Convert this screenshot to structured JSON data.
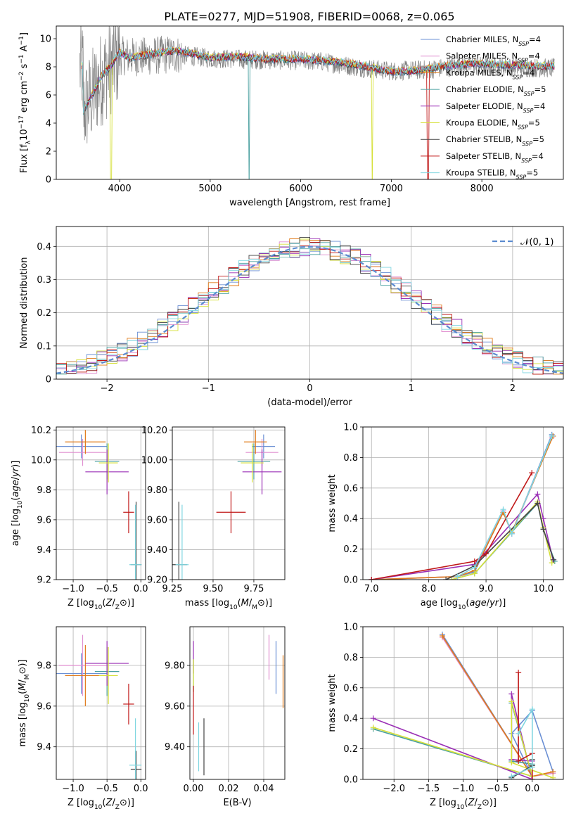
{
  "figure": {
    "title": "PLATE=0277, MJD=51908, FIBERID=0068, z=0.065"
  },
  "series_styles": [
    {
      "name": "Chabrier MILES",
      "nssp": "4",
      "color": "#6a8fd4"
    },
    {
      "name": "Salpeter MILES",
      "nssp": "4",
      "color": "#e08fd0"
    },
    {
      "name": "Kroupa MILES",
      "nssp": "4",
      "color": "#e07b1a"
    },
    {
      "name": "Chabrier ELODIE",
      "nssp": "5",
      "color": "#4aa0a0"
    },
    {
      "name": "Salpeter ELODIE",
      "nssp": "4",
      "color": "#9a2fb5"
    },
    {
      "name": "Kroupa ELODIE",
      "nssp": "5",
      "color": "#d6e03a"
    },
    {
      "name": "Chabrier STELIB",
      "nssp": "5",
      "color": "#444444"
    },
    {
      "name": "Salpeter STELIB",
      "nssp": "4",
      "color": "#c01818"
    },
    {
      "name": "Kroupa STELIB",
      "nssp": "5",
      "color": "#7fd6e0"
    }
  ],
  "chart_data": [
    {
      "id": "spectrum",
      "type": "line",
      "xlabel": "wavelength [Angstrom, rest frame]",
      "ylabel_main": "Flux [f",
      "ylabel_rest": "10",
      "ylabel_exp": "−17",
      "ylabel_tail": " erg cm",
      "xlim": [
        3300,
        8900
      ],
      "ylim": [
        0,
        10.9
      ],
      "xticks": [
        4000,
        5000,
        6000,
        7000,
        8000
      ],
      "yticks": [
        0,
        2,
        4,
        6,
        8,
        10
      ],
      "observed_envelope": [
        [
          3600,
          4.8
        ],
        [
          3800,
          7.2
        ],
        [
          4000,
          8.8
        ],
        [
          4200,
          8.7
        ],
        [
          4600,
          8.9
        ],
        [
          5000,
          8.6
        ],
        [
          5600,
          8.5
        ],
        [
          6200,
          8.4
        ],
        [
          6600,
          8.0
        ],
        [
          7000,
          7.7
        ],
        [
          7400,
          7.8
        ],
        [
          7800,
          8.1
        ],
        [
          8200,
          8.0
        ],
        [
          8800,
          7.9
        ]
      ],
      "model_envelope": [
        [
          3600,
          4.8
        ],
        [
          3700,
          6.0
        ],
        [
          3800,
          7.3
        ],
        [
          3900,
          8.0
        ],
        [
          4000,
          9.0
        ],
        [
          4100,
          8.6
        ],
        [
          4300,
          8.8
        ],
        [
          4600,
          9.1
        ],
        [
          4800,
          8.9
        ],
        [
          5000,
          8.6
        ],
        [
          5300,
          8.7
        ],
        [
          5600,
          8.5
        ],
        [
          6000,
          8.5
        ],
        [
          6400,
          8.3
        ],
        [
          6700,
          8.0
        ],
        [
          7000,
          7.6
        ],
        [
          7300,
          7.7
        ],
        [
          7600,
          8.0
        ],
        [
          7900,
          8.2
        ],
        [
          8200,
          8.1
        ],
        [
          8800,
          8.0
        ]
      ]
    },
    {
      "id": "residuals",
      "type": "line",
      "xlabel": "(data-model)/error",
      "ylabel": "Normed distribution",
      "xlim": [
        -2.5,
        2.5
      ],
      "ylim": [
        0,
        0.46
      ],
      "xticks": [
        -2,
        -1,
        0,
        1,
        2
      ],
      "yticks": [
        0.0,
        0.1,
        0.2,
        0.3,
        0.4
      ],
      "legend": "𝒩(0, 1)",
      "gaussian": {
        "mu": 0,
        "sigma": 1
      }
    },
    {
      "id": "age-Z",
      "type": "scatter",
      "xlabel": "Z [log",
      "ylabel": "age  [log",
      "xlim": [
        -1.25,
        0.07
      ],
      "ylim": [
        9.2,
        10.22
      ],
      "xticks": [
        -1.0,
        -0.5,
        0.0
      ],
      "yticks": [
        9.2,
        9.4,
        9.6,
        9.8,
        10.0,
        10.2
      ],
      "points": [
        {
          "s": 0,
          "x": -0.88,
          "y": 10.09,
          "ex": 0.38,
          "ey": 0.08
        },
        {
          "s": 1,
          "x": -0.86,
          "y": 10.05,
          "ex": 0.35,
          "ey": 0.09
        },
        {
          "s": 2,
          "x": -0.82,
          "y": 10.12,
          "ex": 0.3,
          "ey": 0.08
        },
        {
          "s": 3,
          "x": -0.5,
          "y": 9.99,
          "ex": 0.18,
          "ey": 0.12
        },
        {
          "s": 4,
          "x": -0.5,
          "y": 9.92,
          "ex": 0.32,
          "ey": 0.15
        },
        {
          "s": 5,
          "x": -0.48,
          "y": 9.98,
          "ex": 0.14,
          "ey": 0.13
        },
        {
          "s": 6,
          "x": -0.07,
          "y": 9.3,
          "ex": 0.08,
          "ey": 0.42
        },
        {
          "s": 7,
          "x": -0.18,
          "y": 9.65,
          "ex": 0.08,
          "ey": 0.14
        },
        {
          "s": 8,
          "x": -0.08,
          "y": 9.3,
          "ex": 0.09,
          "ey": 0.4
        }
      ]
    },
    {
      "id": "age-mass",
      "type": "scatter",
      "xlabel": "mass [log",
      "ylabel": "",
      "xlim": [
        9.25,
        9.94
      ],
      "ylim": [
        9.2,
        10.22
      ],
      "xticks": [
        9.25,
        9.5,
        9.75
      ],
      "yticks": [
        9.2,
        9.4,
        9.6,
        9.8,
        10.0,
        10.2
      ],
      "points": [
        {
          "s": 0,
          "x": 9.81,
          "y": 10.09,
          "ex": 0.07,
          "ey": 0.08
        },
        {
          "s": 1,
          "x": 9.8,
          "y": 10.05,
          "ex": 0.1,
          "ey": 0.09
        },
        {
          "s": 2,
          "x": 9.76,
          "y": 10.12,
          "ex": 0.07,
          "ey": 0.08
        },
        {
          "s": 3,
          "x": 9.75,
          "y": 9.99,
          "ex": 0.1,
          "ey": 0.12
        },
        {
          "s": 4,
          "x": 9.8,
          "y": 9.92,
          "ex": 0.12,
          "ey": 0.15
        },
        {
          "s": 5,
          "x": 9.74,
          "y": 9.98,
          "ex": 0.07,
          "ey": 0.13
        },
        {
          "s": 6,
          "x": 9.29,
          "y": 9.3,
          "ex": 0.05,
          "ey": 0.42
        },
        {
          "s": 7,
          "x": 9.61,
          "y": 9.65,
          "ex": 0.09,
          "ey": 0.14
        },
        {
          "s": 8,
          "x": 9.31,
          "y": 9.3,
          "ex": 0.04,
          "ey": 0.4
        }
      ]
    },
    {
      "id": "weight-age",
      "type": "line",
      "xlabel": "age  [log",
      "ylabel": "mass weight",
      "xlim": [
        6.85,
        10.35
      ],
      "ylim": [
        0,
        1.0
      ],
      "xticks": [
        7,
        8,
        9,
        10
      ],
      "yticks": [
        0.0,
        0.2,
        0.4,
        0.6,
        0.8,
        1.0
      ],
      "series": [
        {
          "s": 0,
          "points": [
            [
              7.0,
              0.0
            ],
            [
              8.5,
              0.02
            ],
            [
              8.8,
              0.05
            ],
            [
              9.3,
              0.45
            ],
            [
              9.45,
              0.3
            ],
            [
              10.15,
              0.95
            ]
          ]
        },
        {
          "s": 1,
          "points": [
            [
              7.0,
              0.0
            ],
            [
              8.5,
              0.02
            ],
            [
              8.8,
              0.06
            ],
            [
              9.3,
              0.45
            ],
            [
              9.45,
              0.3
            ],
            [
              10.15,
              0.93
            ]
          ]
        },
        {
          "s": 2,
          "points": [
            [
              7.0,
              0.0
            ],
            [
              8.5,
              0.02
            ],
            [
              8.8,
              0.06
            ],
            [
              9.3,
              0.44
            ],
            [
              9.45,
              0.31
            ],
            [
              10.17,
              0.94
            ]
          ]
        },
        {
          "s": 3,
          "points": [
            [
              8.4,
              0.0
            ],
            [
              8.8,
              0.04
            ],
            [
              9.9,
              0.5
            ],
            [
              10.0,
              0.33
            ],
            [
              10.2,
              0.12
            ]
          ]
        },
        {
          "s": 4,
          "points": [
            [
              7.0,
              0.0
            ],
            [
              8.8,
              0.1
            ],
            [
              9.9,
              0.56
            ],
            [
              10.0,
              0.4
            ],
            [
              10.17,
              0.13
            ]
          ]
        },
        {
          "s": 5,
          "points": [
            [
              8.4,
              0.0
            ],
            [
              8.8,
              0.04
            ],
            [
              9.9,
              0.51
            ],
            [
              10.0,
              0.34
            ],
            [
              10.15,
              0.11
            ]
          ]
        },
        {
          "s": 6,
          "points": [
            [
              8.3,
              0.0
            ],
            [
              8.8,
              0.09
            ],
            [
              9.9,
              0.5
            ],
            [
              10.0,
              0.33
            ],
            [
              10.18,
              0.13
            ]
          ]
        },
        {
          "s": 7,
          "points": [
            [
              7.0,
              0.0
            ],
            [
              8.8,
              0.12
            ],
            [
              9.0,
              0.17
            ],
            [
              9.8,
              0.7
            ]
          ]
        },
        {
          "s": 8,
          "points": [
            [
              8.5,
              0.02
            ],
            [
              8.8,
              0.08
            ],
            [
              9.3,
              0.46
            ],
            [
              9.45,
              0.3
            ],
            [
              10.15,
              0.94
            ]
          ]
        }
      ]
    },
    {
      "id": "mass-Z",
      "type": "scatter",
      "xlabel": "Z [log",
      "ylabel": "mass [log",
      "xlim": [
        -1.25,
        0.07
      ],
      "ylim": [
        9.24,
        9.99
      ],
      "xticks": [
        -1.0,
        -0.5,
        0.0
      ],
      "yticks": [
        9.4,
        9.6,
        9.8
      ],
      "points": [
        {
          "s": 0,
          "x": -0.88,
          "y": 9.76,
          "ex": 0.38,
          "ey": 0.1
        },
        {
          "s": 1,
          "x": -0.86,
          "y": 9.8,
          "ex": 0.35,
          "ey": 0.15
        },
        {
          "s": 2,
          "x": -0.82,
          "y": 9.75,
          "ex": 0.3,
          "ey": 0.15
        },
        {
          "s": 3,
          "x": -0.5,
          "y": 9.77,
          "ex": 0.18,
          "ey": 0.12
        },
        {
          "s": 4,
          "x": -0.5,
          "y": 9.81,
          "ex": 0.32,
          "ey": 0.11
        },
        {
          "s": 5,
          "x": -0.48,
          "y": 9.75,
          "ex": 0.14,
          "ey": 0.14
        },
        {
          "s": 6,
          "x": -0.07,
          "y": 9.29,
          "ex": 0.08,
          "ey": 0.09
        },
        {
          "s": 7,
          "x": -0.18,
          "y": 9.61,
          "ex": 0.08,
          "ey": 0.1
        },
        {
          "s": 8,
          "x": -0.08,
          "y": 9.31,
          "ex": 0.09,
          "ey": 0.23
        }
      ]
    },
    {
      "id": "mass-ebv",
      "type": "scatter",
      "xlabel": "E(B-V)",
      "ylabel": "",
      "xlim": [
        -0.002,
        0.052
      ],
      "ylim": [
        9.24,
        9.99
      ],
      "xticks": [
        0.0,
        0.02,
        0.04
      ],
      "yticks": [
        9.4,
        9.6,
        9.8
      ],
      "points": [
        {
          "s": 0,
          "x": 0.047,
          "y": 9.79,
          "ex": 0,
          "ey": 0.13
        },
        {
          "s": 1,
          "x": 0.043,
          "y": 9.84,
          "ex": 0,
          "ey": 0.11
        },
        {
          "s": 2,
          "x": 0.051,
          "y": 9.72,
          "ex": 0,
          "ey": 0.13
        },
        {
          "s": 3,
          "x": 0.0,
          "y": 9.75,
          "ex": 0,
          "ey": 0.08
        },
        {
          "s": 4,
          "x": 0.0,
          "y": 9.84,
          "ex": 0,
          "ey": 0.08
        },
        {
          "s": 5,
          "x": 0.0,
          "y": 9.75,
          "ex": 0,
          "ey": 0.08
        },
        {
          "s": 6,
          "x": 0.006,
          "y": 9.4,
          "ex": 0,
          "ey": 0.14
        },
        {
          "s": 7,
          "x": 0.0,
          "y": 9.58,
          "ex": 0,
          "ey": 0.12
        },
        {
          "s": 8,
          "x": 0.003,
          "y": 9.4,
          "ex": 0,
          "ey": 0.12
        }
      ]
    },
    {
      "id": "weight-Z",
      "type": "line",
      "xlabel": "Z [log",
      "ylabel": "mass weight",
      "xlim": [
        -2.45,
        0.45
      ],
      "ylim": [
        0,
        1.0
      ],
      "xticks": [
        -2.0,
        -1.5,
        -1.0,
        -0.5,
        0.0
      ],
      "yticks": [
        0.0,
        0.2,
        0.4,
        0.6,
        0.8,
        1.0
      ],
      "series": [
        {
          "s": 0,
          "points": [
            [
              -1.3,
              0.95
            ],
            [
              0.0,
              0.02
            ],
            [
              -0.3,
              0.3
            ],
            [
              0.0,
              0.45
            ],
            [
              0.3,
              0.05
            ]
          ]
        },
        {
          "s": 1,
          "points": [
            [
              -1.3,
              0.93
            ],
            [
              0.0,
              0.02
            ],
            [
              0.3,
              0.04
            ]
          ]
        },
        {
          "s": 2,
          "points": [
            [
              -1.3,
              0.94
            ],
            [
              0.0,
              0.02
            ],
            [
              0.3,
              0.05
            ]
          ]
        },
        {
          "s": 3,
          "points": [
            [
              -2.3,
              0.33
            ],
            [
              0.0,
              0.02
            ],
            [
              -0.3,
              0.5
            ],
            [
              -0.3,
              0.12
            ],
            [
              0.0,
              0.1
            ]
          ]
        },
        {
          "s": 4,
          "points": [
            [
              -2.3,
              0.4
            ],
            [
              0.0,
              0.0
            ],
            [
              -0.3,
              0.56
            ],
            [
              -0.3,
              0.13
            ],
            [
              0.0,
              0.12
            ]
          ]
        },
        {
          "s": 5,
          "points": [
            [
              -2.3,
              0.34
            ],
            [
              0.0,
              0.02
            ],
            [
              -0.3,
              0.51
            ],
            [
              -0.3,
              0.11
            ],
            [
              0.3,
              0.01
            ]
          ]
        },
        {
          "s": 6,
          "points": [
            [
              -0.3,
              0.01
            ],
            [
              0.0,
              0.09
            ],
            [
              0.0,
              0.13
            ]
          ]
        },
        {
          "s": 7,
          "points": [
            [
              -0.2,
              0.7
            ],
            [
              -0.2,
              0.12
            ],
            [
              0.0,
              0.17
            ],
            [
              0.0,
              0.0
            ]
          ]
        },
        {
          "s": 8,
          "points": [
            [
              -0.3,
              0.02
            ],
            [
              0.0,
              0.08
            ],
            [
              0.0,
              0.46
            ],
            [
              -0.2,
              0.3
            ]
          ]
        }
      ]
    }
  ]
}
